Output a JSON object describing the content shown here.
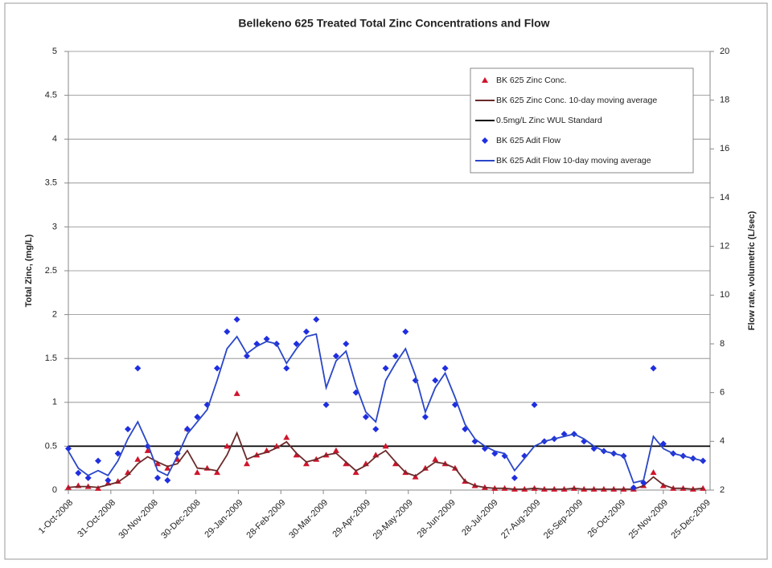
{
  "chart_data": {
    "type": "scatter-line",
    "title": "Bellekeno 625 Treated Total Zinc Concentrations and Flow",
    "y_label": "Total Zinc, (mg/L)",
    "y2_label": "Flow rate, volumetric (L/sec)",
    "x": [
      "2008-10-01",
      "2008-10-08",
      "2008-10-15",
      "2008-10-22",
      "2008-10-29",
      "2008-11-05",
      "2008-11-12",
      "2008-11-19",
      "2008-11-26",
      "2008-12-03",
      "2008-12-10",
      "2008-12-17",
      "2008-12-24",
      "2008-12-31",
      "2009-01-07",
      "2009-01-14",
      "2009-01-21",
      "2009-01-28",
      "2009-02-04",
      "2009-02-11",
      "2009-02-18",
      "2009-02-25",
      "2009-03-04",
      "2009-03-11",
      "2009-03-18",
      "2009-03-25",
      "2009-04-01",
      "2009-04-08",
      "2009-04-15",
      "2009-04-22",
      "2009-04-29",
      "2009-05-06",
      "2009-05-13",
      "2009-05-20",
      "2009-05-27",
      "2009-06-03",
      "2009-06-10",
      "2009-06-17",
      "2009-06-24",
      "2009-07-01",
      "2009-07-08",
      "2009-07-15",
      "2009-07-22",
      "2009-07-29",
      "2009-08-05",
      "2009-08-12",
      "2009-08-19",
      "2009-08-26",
      "2009-09-02",
      "2009-09-09",
      "2009-09-16",
      "2009-09-23",
      "2009-09-30",
      "2009-10-07",
      "2009-10-14",
      "2009-10-21",
      "2009-10-28",
      "2009-11-04",
      "2009-11-11",
      "2009-11-18",
      "2009-11-25",
      "2009-12-02",
      "2009-12-09",
      "2009-12-16",
      "2009-12-23"
    ],
    "xlim": [
      "2008-10-01",
      "2009-12-28"
    ],
    "xticks": [
      {
        "value": "2008-10-01",
        "label": "1-Oct-2008"
      },
      {
        "value": "2008-10-31",
        "label": "31-Oct-2008"
      },
      {
        "value": "2008-11-30",
        "label": "30-Nov-2008"
      },
      {
        "value": "2008-12-30",
        "label": "30-Dec-2008"
      },
      {
        "value": "2009-01-29",
        "label": "29-Jan-2009"
      },
      {
        "value": "2009-02-28",
        "label": "28-Feb-2009"
      },
      {
        "value": "2009-03-30",
        "label": "30-Mar-2009"
      },
      {
        "value": "2009-04-29",
        "label": "29-Apr-2009"
      },
      {
        "value": "2009-05-29",
        "label": "29-May-2009"
      },
      {
        "value": "2009-06-28",
        "label": "28-Jun-2009"
      },
      {
        "value": "2009-07-28",
        "label": "28-Jul-2009"
      },
      {
        "value": "2009-08-27",
        "label": "27-Aug-2009"
      },
      {
        "value": "2009-09-26",
        "label": "26-Sep-2009"
      },
      {
        "value": "2009-10-26",
        "label": "26-Oct-2009"
      },
      {
        "value": "2009-11-25",
        "label": "25-Nov-2009"
      },
      {
        "value": "2009-12-25",
        "label": "25-Dec-2009"
      }
    ],
    "ylim": [
      0,
      5
    ],
    "yticks": [
      0,
      0.5,
      1,
      1.5,
      2,
      2.5,
      3,
      3.5,
      4,
      4.5,
      5
    ],
    "y2lim": [
      2,
      20
    ],
    "y2ticks": [
      2,
      4,
      6,
      8,
      10,
      12,
      14,
      16,
      18,
      20
    ],
    "grid": true,
    "series": [
      {
        "name": "BK 625 Zinc Conc.",
        "color": "#d0142c",
        "style": "triangle",
        "axis": "y",
        "values": [
          0.03,
          0.05,
          0.04,
          0.02,
          0.08,
          0.1,
          0.2,
          0.35,
          0.45,
          0.3,
          0.25,
          0.35,
          0.7,
          0.2,
          0.25,
          0.2,
          0.5,
          1.1,
          0.3,
          0.4,
          0.45,
          0.5,
          0.6,
          0.4,
          0.3,
          0.35,
          0.4,
          0.45,
          0.3,
          0.2,
          0.3,
          0.4,
          0.5,
          0.3,
          0.2,
          0.15,
          0.25,
          0.35,
          0.3,
          0.25,
          0.1,
          0.05,
          0.03,
          0.02,
          0.02,
          0.01,
          0.01,
          0.02,
          0.01,
          0.01,
          0.01,
          0.02,
          0.01,
          0.01,
          0.01,
          0.01,
          0.01,
          0.01,
          0.05,
          0.2,
          0.05,
          0.02,
          0.02,
          0.01,
          0.02
        ]
      },
      {
        "name": "BK 625 Zinc Conc. 10-day moving average",
        "color": "#6b2a2a",
        "style": "line",
        "axis": "y",
        "values": [
          0.03,
          0.04,
          0.04,
          0.03,
          0.06,
          0.09,
          0.17,
          0.3,
          0.38,
          0.32,
          0.27,
          0.3,
          0.45,
          0.25,
          0.24,
          0.22,
          0.4,
          0.65,
          0.35,
          0.4,
          0.43,
          0.48,
          0.55,
          0.42,
          0.32,
          0.35,
          0.4,
          0.42,
          0.32,
          0.22,
          0.28,
          0.38,
          0.45,
          0.32,
          0.2,
          0.16,
          0.24,
          0.32,
          0.3,
          0.25,
          0.1,
          0.05,
          0.03,
          0.02,
          0.02,
          0.01,
          0.01,
          0.02,
          0.01,
          0.01,
          0.01,
          0.02,
          0.01,
          0.01,
          0.01,
          0.01,
          0.01,
          0.01,
          0.05,
          0.15,
          0.06,
          0.02,
          0.02,
          0.01,
          0.02
        ]
      },
      {
        "name": "0.5mg/L Zinc WUL Standard",
        "color": "#000000",
        "style": "line",
        "axis": "y",
        "x": [
          "2008-10-01",
          "2009-12-28"
        ],
        "values": [
          0.5,
          0.5
        ]
      },
      {
        "name": "BK 625 Adit Flow",
        "color": "#1f2ee0",
        "style": "diamond",
        "axis": "y2",
        "values": [
          3.7,
          2.7,
          2.5,
          3.2,
          2.4,
          3.5,
          4.5,
          7,
          3.8,
          2.5,
          2.4,
          3.5,
          4.5,
          5,
          5.5,
          7,
          8.5,
          9,
          7.5,
          8,
          8.2,
          8,
          7,
          8,
          8.5,
          9,
          5.5,
          7.5,
          8,
          6,
          5,
          4.5,
          7,
          7.5,
          8.5,
          6.5,
          5,
          6.5,
          7,
          5.5,
          4.5,
          4,
          3.7,
          3.5,
          3.4,
          2.5,
          3.4,
          5.5,
          4,
          4.1,
          4.3,
          4.3,
          4,
          3.7,
          3.6,
          3.5,
          3.4,
          2.1,
          2.3,
          7,
          3.9,
          3.5,
          3.4,
          3.3,
          3.2
        ]
      },
      {
        "name": "BK 625 Adit Flow 10-day moving average",
        "color": "#2a46c8",
        "style": "line",
        "axis": "y2",
        "values": [
          3.6,
          2.9,
          2.6,
          2.8,
          2.6,
          3.2,
          4.1,
          4.8,
          3.9,
          2.8,
          2.6,
          3.4,
          4.3,
          4.8,
          5.3,
          6.5,
          7.8,
          8.3,
          7.6,
          7.9,
          8.1,
          8,
          7.2,
          7.8,
          8.3,
          8.4,
          6.2,
          7.3,
          7.7,
          6.3,
          5.2,
          4.8,
          6.5,
          7.2,
          7.8,
          6.7,
          5.2,
          6.2,
          6.8,
          5.8,
          4.7,
          4.1,
          3.8,
          3.6,
          3.5,
          2.8,
          3.3,
          3.8,
          4,
          4.1,
          4.2,
          4.3,
          4.1,
          3.8,
          3.6,
          3.5,
          3.4,
          2.3,
          2.4,
          4.2,
          3.7,
          3.5,
          3.4,
          3.3,
          3.2
        ]
      }
    ]
  }
}
